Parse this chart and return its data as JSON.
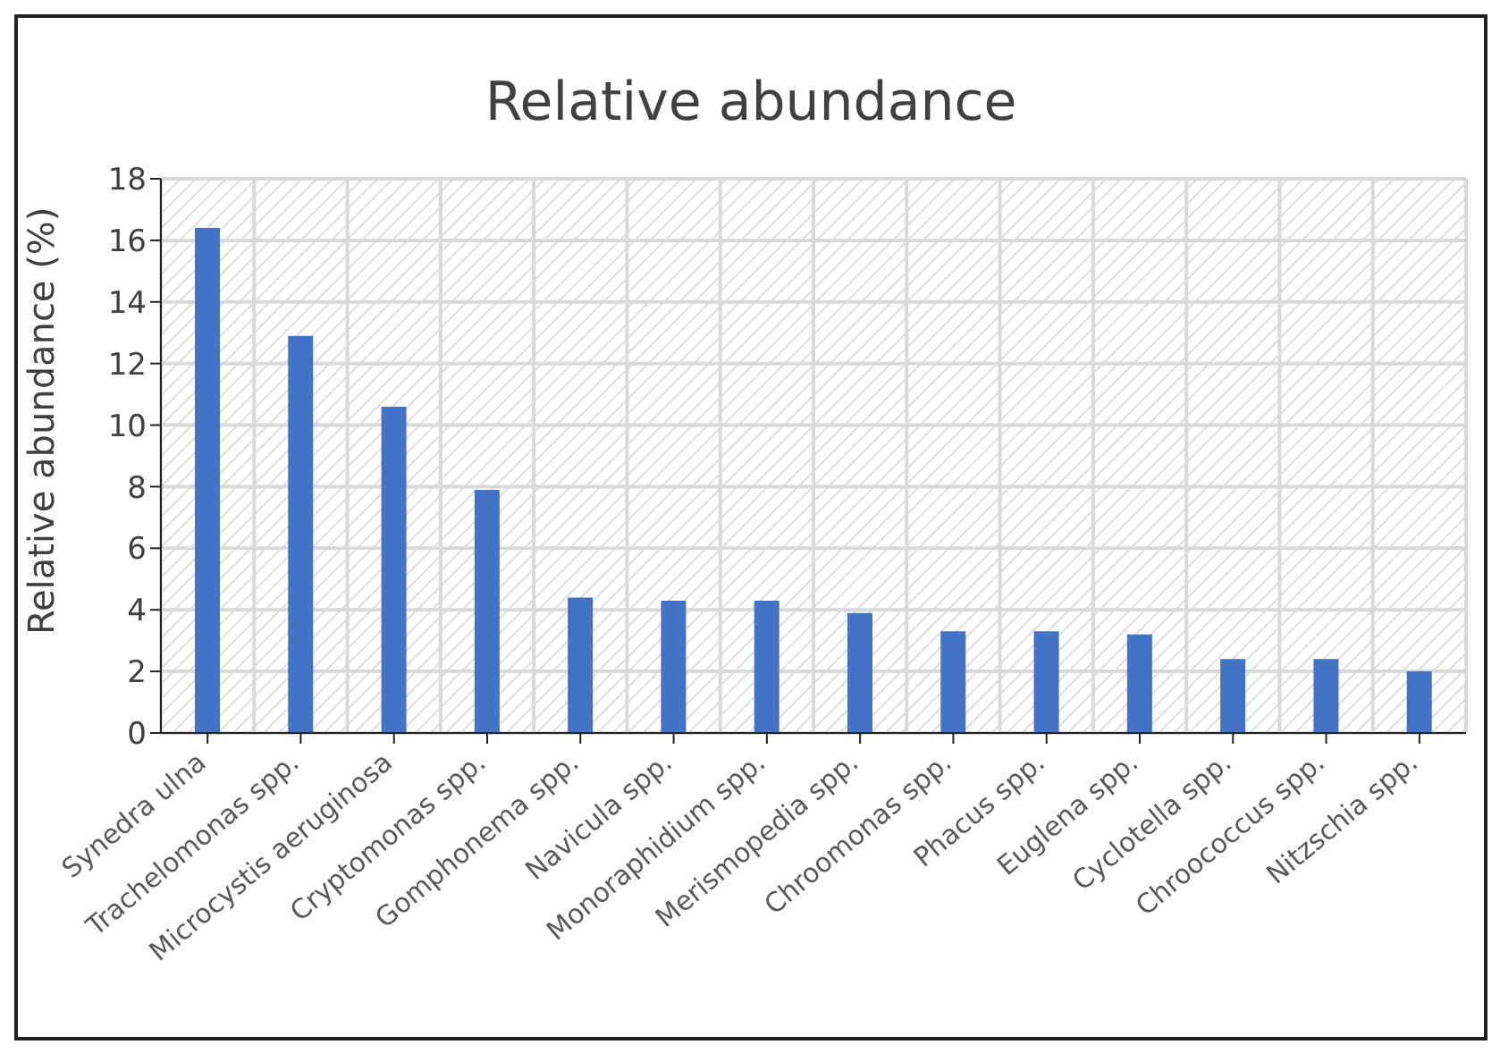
{
  "chart_data": {
    "type": "bar",
    "title": "Relative abundance",
    "ylabel": "Relative abundance (%)",
    "categories": [
      "Synedra ulna",
      "Trachelomonas spp.",
      "Microcystis aeruginosa",
      "Cryptomonas spp.",
      "Gomphonema spp.",
      "Navicula spp.",
      "Monoraphidium spp.",
      "Merismopedia spp.",
      "Chroomonas spp.",
      "Phacus spp.",
      "Euglena spp.",
      "Cyclotella spp.",
      "Chroococcus spp.",
      "Nitzschia spp."
    ],
    "values": [
      16.4,
      12.9,
      10.6,
      7.9,
      4.4,
      4.3,
      4.3,
      3.9,
      3.3,
      3.3,
      3.2,
      2.4,
      2.4,
      2.0
    ],
    "color": "#4472c4",
    "ylim": [
      0,
      18
    ],
    "yticks": [
      0,
      2,
      4,
      6,
      8,
      10,
      12,
      14,
      16,
      18
    ],
    "grid": true
  }
}
